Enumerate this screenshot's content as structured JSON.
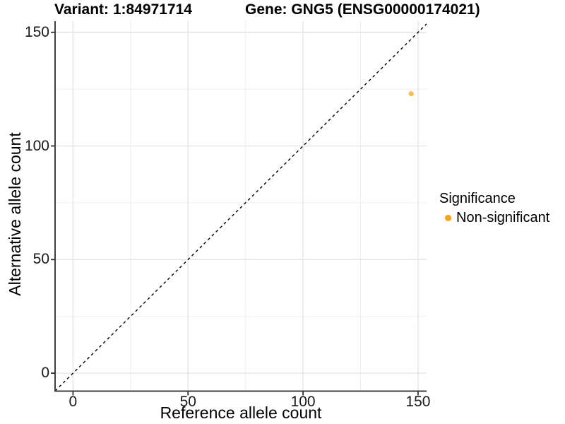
{
  "titles": {
    "variant": "Variant: 1:84971714",
    "gene": "Gene: GNG5 (ENSG00000174021)"
  },
  "axes": {
    "x_label": "Reference allele count",
    "y_label": "Alternative allele count"
  },
  "legend": {
    "title": "Significance",
    "items": [
      {
        "label": "Non-significant",
        "color": "#FFA115"
      }
    ]
  },
  "colors": {
    "background": "#ffffff",
    "axis_line": "#3f3f3f",
    "tick_mark": "#333333",
    "grid_major": "#E5E5E5",
    "grid_minor": "#EFEFEF",
    "tick_label": "#1a1a1a",
    "reference_line": "#000000",
    "point_fill": "#FFA500"
  },
  "chart_data": {
    "type": "scatter",
    "title": "Variant: 1:84971714 | Gene: GNG5 (ENSG00000174021)",
    "xlabel": "Reference allele count",
    "ylabel": "Alternative allele count",
    "xlim": [
      -7.8,
      153.7
    ],
    "ylim": [
      -7.9,
      154.9
    ],
    "x_major_ticks": [
      0,
      50,
      100,
      150
    ],
    "x_minor_ticks": [
      25,
      75,
      125
    ],
    "y_major_ticks": [
      0,
      50,
      100,
      150
    ],
    "y_minor_ticks": [
      25,
      75,
      125
    ],
    "grid": true,
    "legend_position": "right",
    "reference_line": {
      "type": "identity",
      "slope": 1,
      "intercept": 0,
      "style": "dashed",
      "color": "#000000"
    },
    "series": [
      {
        "name": "Non-significant",
        "color": "#FFA500",
        "point_opacity": 0.72,
        "points": [
          [
            147,
            123
          ]
        ]
      }
    ]
  }
}
